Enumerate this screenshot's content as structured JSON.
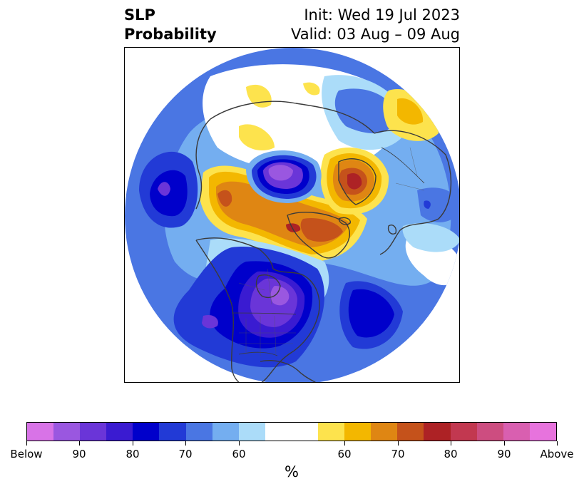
{
  "title": {
    "left_line1": "SLP",
    "left_line2": "Probability",
    "right_line1": "Init: Wed 19 Jul 2023",
    "right_line2": "Valid: 03 Aug – 09 Aug"
  },
  "map": {
    "projection": "north-polar-stereographic",
    "features": [
      {
        "name": "low-north-pole",
        "category": "Below 80-90"
      },
      {
        "name": "low-north-america",
        "category": "Below 80-90"
      },
      {
        "name": "low-north-pacific",
        "category": "Below 70-80"
      },
      {
        "name": "low-north-atlantic",
        "category": "Below 70-80"
      },
      {
        "name": "high-greenland-canadian-arctic",
        "category": "Above 60-80"
      },
      {
        "name": "high-scandinavia-barents",
        "category": "Above 60-80"
      },
      {
        "name": "high-bering-siberia",
        "category": "Above 60-70"
      }
    ]
  },
  "colorbar": {
    "colors": [
      "#d873e7",
      "#9a57e0",
      "#6a35d8",
      "#3a1bd1",
      "#0000cb",
      "#223ad6",
      "#4a76e3",
      "#74aef0",
      "#abdcf9",
      "#ffffff",
      "#ffffff",
      "#fde34d",
      "#f3b700",
      "#df8613",
      "#c5521b",
      "#ad2225",
      "#c23850",
      "#cd4d80",
      "#d95fb0",
      "#e773dd"
    ],
    "ticks": [
      "Below",
      "90",
      "80",
      "70",
      "60",
      "60",
      "70",
      "80",
      "90",
      "Above"
    ],
    "unit": "%"
  }
}
